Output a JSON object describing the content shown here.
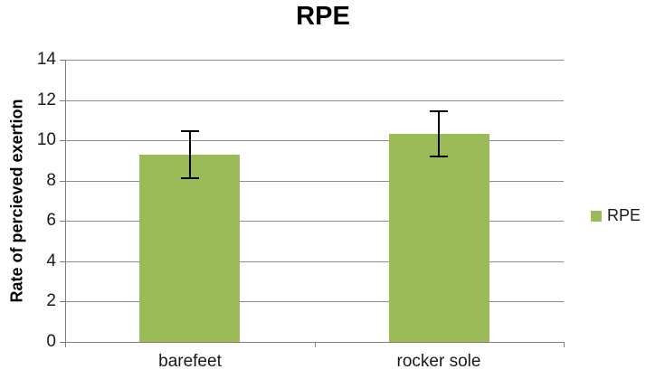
{
  "chart_data": {
    "type": "bar",
    "title": "RPE",
    "categories": [
      "barefeet",
      "rocker sole"
    ],
    "series": [
      {
        "name": "RPE",
        "values": [
          9.3,
          10.3
        ],
        "error_low": [
          8.1,
          9.2
        ],
        "error_high": [
          10.5,
          11.5
        ],
        "color": "#9BBB59"
      }
    ],
    "xlabel": "",
    "ylabel": "Rate of percieved exertion",
    "ylim": [
      0,
      14
    ],
    "yticks": [
      0,
      2,
      4,
      6,
      8,
      10,
      12,
      14
    ],
    "grid": true,
    "legend_position": "right",
    "legend_entries": [
      "RPE"
    ]
  },
  "legend": {
    "label": "RPE"
  },
  "colors": {
    "bar": "#9BBB59",
    "gridline": "#8C8C8C",
    "axis": "#7F7F7F",
    "error_bar": "#000000",
    "title_text": "#000000",
    "label_text": "#1A1A1A"
  }
}
